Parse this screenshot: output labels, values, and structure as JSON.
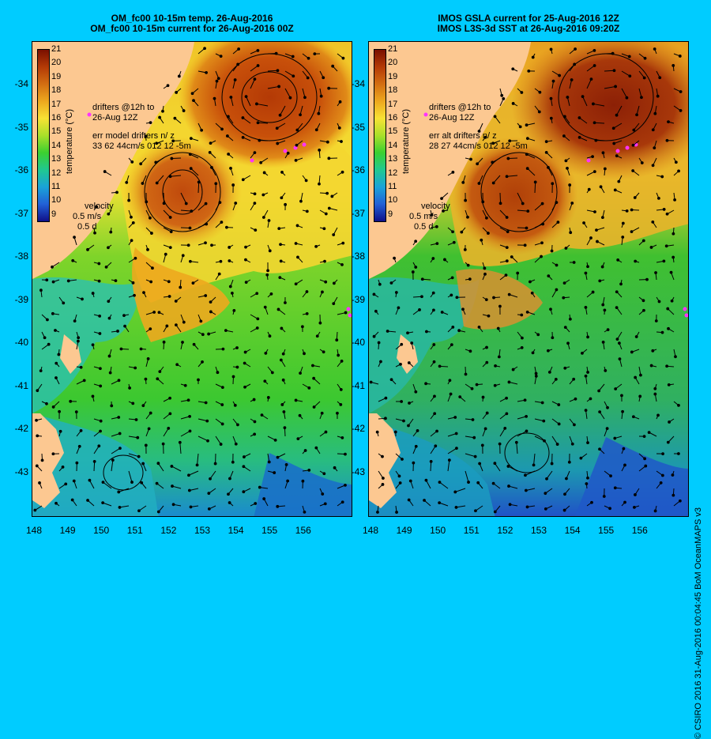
{
  "left": {
    "title_line1": "OM_fc00 10-15m temp. 26-Aug-2016",
    "title_line2": "OM_fc00 10-15m current for 26-Aug-2016 00Z",
    "drifter_label_1": "drifters @12h to",
    "drifter_label_2": "26-Aug 12Z",
    "err_label_1": "err model drifters n/ z",
    "err_label_2": "33 62 44cm/s 012 12 -5m",
    "velocity_label": "velocity",
    "velocity_scale": "0.5 m/s",
    "velocity_time": "0.5 d"
  },
  "right": {
    "title_line1": "IMOS GSLA current for 25-Aug-2016 12Z",
    "title_line2": "IMOS L3S-3d SST at 26-Aug-2016 09:20Z",
    "drifter_label_1": "drifters @12h to",
    "drifter_label_2": "26-Aug 12Z",
    "err_label_1": "err alt drifters n/ z",
    "err_label_2": "28 27 44cm/s 012 12 -5m",
    "velocity_label": "velocity",
    "velocity_scale": "0.5 m/s",
    "velocity_time": "0.5 d"
  },
  "colorbar": {
    "title": "temperature (°C)",
    "ticks": [
      "21",
      "20",
      "19",
      "18",
      "17",
      "16",
      "15",
      "14",
      "13",
      "12",
      "11",
      "10",
      "9"
    ]
  },
  "y_ticks": [
    "-34",
    "-35",
    "-36",
    "-37",
    "-38",
    "-39",
    "-40",
    "-41",
    "-42",
    "-43"
  ],
  "x_ticks": [
    "148",
    "149",
    "150",
    "151",
    "152",
    "153",
    "154",
    "155",
    "156"
  ],
  "credit": "© CSIRO 2016   31-Aug-2016 00:04:45 BoM OceanMAPS v3",
  "colors": {
    "background": "#00ccff",
    "land": "#fcc891",
    "drifter": "#ff33ff"
  }
}
